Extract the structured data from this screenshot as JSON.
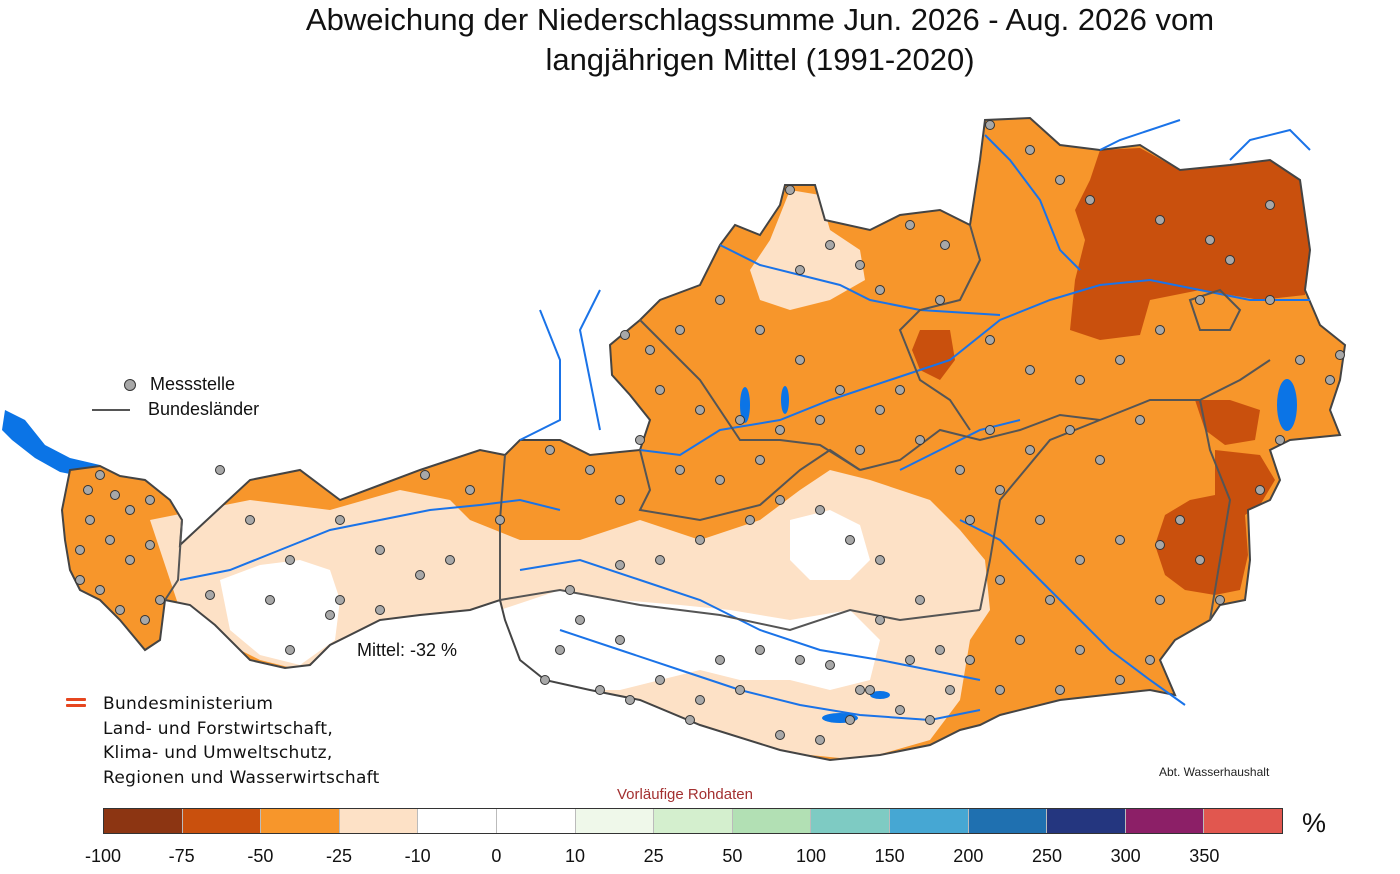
{
  "title_line1": "Abweichung der Niederschlagssumme Jun. 2026 - Aug. 2026 vom",
  "title_line2": "langjährigen Mittel (1991-2020)",
  "legend": {
    "station_label": "Messstelle",
    "border_label": "Bundesländer"
  },
  "mean_label": "Mittel: -32 %",
  "ministry": {
    "line1": "Bundesministerium",
    "line2": "Land- und Forstwirtschaft,",
    "line3": "Klima- und Umweltschutz,",
    "line4": "Regionen und Wasserwirtschaft"
  },
  "department": "Abt. Wasserhaushalt",
  "preliminary_note": "Vorläufige Rohdaten",
  "colorbar": {
    "unit": "%",
    "tick_labels": [
      "-100",
      "-75",
      "-50",
      "-25",
      "-10",
      "0",
      "10",
      "25",
      "50",
      "100",
      "150",
      "200",
      "250",
      "300",
      "350"
    ],
    "colors": [
      "#8c3512",
      "#c9500d",
      "#f7962b",
      "#fde1c6",
      "#ffffff",
      "#ffffff",
      "#eff8ea",
      "#d4efce",
      "#b2e0b4",
      "#7ecbc3",
      "#46a7d3",
      "#1f70b0",
      "#24367f",
      "#8c1f67",
      "#e1574f"
    ]
  },
  "map_colors": {
    "very_dry": "#c9500d",
    "dry": "#f7962b",
    "slightly_dry": "#fde1c6",
    "normal": "#ffffff",
    "water": "#0b74e6",
    "station_fill": "#a8a8a8"
  }
}
